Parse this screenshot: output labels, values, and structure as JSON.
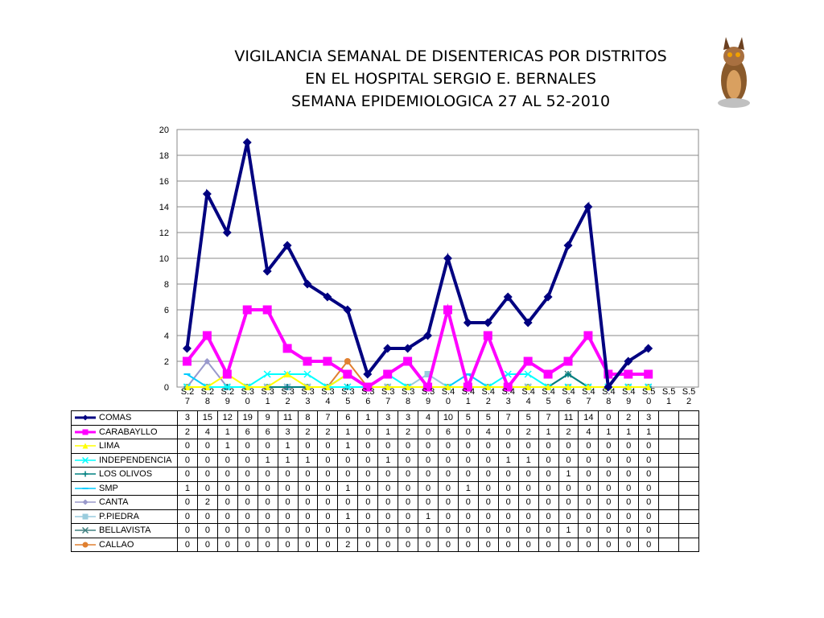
{
  "chart_data": {
    "type": "line",
    "title": [
      "VIGILANCIA SEMANAL DE DISENTERICAS POR DISTRITOS",
      "EN EL HOSPITAL SERGIO E. BERNALES",
      "SEMANA EPIDEMIOLOGICA 27 AL 52-2010"
    ],
    "categories": [
      "S.27",
      "S.28",
      "S.29",
      "S.30",
      "S.31",
      "S.32",
      "S.33",
      "S.34",
      "S.35",
      "S.36",
      "S.37",
      "S.38",
      "S.39",
      "S.40",
      "S.41",
      "S.42",
      "S.43",
      "S.44",
      "S.45",
      "S.46",
      "S.47",
      "S.48",
      "S.49",
      "S.50",
      "S.51",
      "S.52"
    ],
    "ylim": [
      0,
      20
    ],
    "yticks": [
      0,
      2,
      4,
      6,
      8,
      10,
      12,
      14,
      16,
      18,
      20
    ],
    "grid": true,
    "series": [
      {
        "name": "COMAS",
        "color": "#000080",
        "marker": "diamond",
        "values": [
          3,
          15,
          12,
          19,
          9,
          11,
          8,
          7,
          6,
          1,
          3,
          3,
          4,
          10,
          5,
          5,
          7,
          5,
          7,
          11,
          14,
          0,
          2,
          3,
          null,
          null
        ]
      },
      {
        "name": "CARABAYLLO",
        "color": "#ff00ff",
        "marker": "square",
        "values": [
          2,
          4,
          1,
          6,
          6,
          3,
          2,
          2,
          1,
          0,
          1,
          2,
          0,
          6,
          0,
          4,
          0,
          2,
          1,
          2,
          4,
          1,
          1,
          1,
          null,
          null
        ]
      },
      {
        "name": "LIMA",
        "color": "#ffff00",
        "marker": "triangle",
        "values": [
          0,
          0,
          1,
          0,
          0,
          1,
          0,
          0,
          1,
          0,
          0,
          0,
          0,
          0,
          0,
          0,
          0,
          0,
          0,
          0,
          0,
          0,
          0,
          0,
          null,
          null
        ]
      },
      {
        "name": "INDEPENDENCIA",
        "color": "#00ffff",
        "marker": "x",
        "values": [
          0,
          0,
          0,
          0,
          1,
          1,
          1,
          0,
          0,
          0,
          1,
          0,
          0,
          0,
          0,
          0,
          1,
          1,
          0,
          0,
          0,
          0,
          0,
          0,
          null,
          null
        ]
      },
      {
        "name": "LOS OLIVOS",
        "color": "#008080",
        "marker": "plus",
        "values": [
          0,
          0,
          0,
          0,
          0,
          0,
          0,
          0,
          0,
          0,
          0,
          0,
          0,
          0,
          0,
          0,
          0,
          0,
          0,
          1,
          0,
          0,
          0,
          0,
          null,
          null
        ]
      },
      {
        "name": "SMP",
        "color": "#00ccff",
        "marker": "dash",
        "values": [
          1,
          0,
          0,
          0,
          0,
          0,
          0,
          0,
          1,
          0,
          0,
          0,
          0,
          0,
          1,
          0,
          0,
          0,
          0,
          0,
          0,
          0,
          0,
          0,
          null,
          null
        ]
      },
      {
        "name": "CANTA",
        "color": "#9999cc",
        "marker": "diamond",
        "values": [
          0,
          2,
          0,
          0,
          0,
          0,
          0,
          0,
          0,
          0,
          0,
          0,
          0,
          0,
          0,
          0,
          0,
          0,
          0,
          0,
          0,
          0,
          0,
          0,
          null,
          null
        ]
      },
      {
        "name": "P.PIEDRA",
        "color": "#99ccdd",
        "marker": "square",
        "values": [
          0,
          0,
          0,
          0,
          0,
          0,
          0,
          0,
          1,
          0,
          0,
          0,
          1,
          0,
          0,
          0,
          0,
          0,
          0,
          0,
          0,
          0,
          0,
          0,
          null,
          null
        ]
      },
      {
        "name": "BELLAVISTA",
        "color": "#408080",
        "marker": "x",
        "values": [
          0,
          0,
          0,
          0,
          0,
          0,
          0,
          0,
          0,
          0,
          0,
          0,
          0,
          0,
          0,
          0,
          0,
          0,
          0,
          1,
          0,
          0,
          0,
          0,
          null,
          null
        ]
      },
      {
        "name": "CALLAO",
        "color": "#e08030",
        "marker": "circle",
        "values": [
          0,
          0,
          0,
          0,
          0,
          0,
          0,
          0,
          2,
          0,
          0,
          0,
          0,
          0,
          0,
          0,
          0,
          0,
          0,
          0,
          0,
          0,
          0,
          0,
          null,
          null
        ]
      }
    ]
  }
}
